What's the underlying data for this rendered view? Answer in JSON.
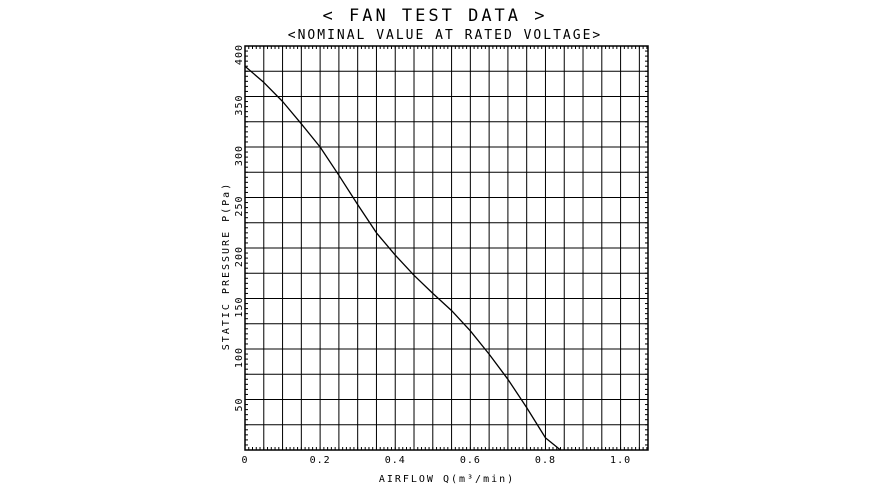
{
  "chart_data": {
    "type": "line",
    "title": "< FAN TEST DATA >",
    "subtitle": "<NOMINAL VALUE AT RATED VOLTAGE>",
    "xlabel": "AIRFLOW Q(m³/min)",
    "ylabel": "STATIC PRESSURE P(Pa)",
    "xlim": [
      0,
      1.073
    ],
    "ylim": [
      0,
      400
    ],
    "x_ticks": [
      0,
      0.2,
      0.4,
      0.6,
      0.8,
      1.0
    ],
    "x_tick_labels": [
      "0",
      "0.2",
      "0.4",
      "0.6",
      "0.8",
      "1.0"
    ],
    "y_ticks": [
      50,
      100,
      150,
      200,
      250,
      300,
      350,
      400
    ],
    "y_tick_labels": [
      "50",
      "100",
      "150",
      "200",
      "250",
      "300",
      "350",
      "400"
    ],
    "grid": true,
    "series": [
      {
        "x": [
          0,
          0.05,
          0.1,
          0.15,
          0.2,
          0.25,
          0.3,
          0.35,
          0.4,
          0.45,
          0.5,
          0.55,
          0.6,
          0.65,
          0.7,
          0.75,
          0.8,
          0.84
        ],
        "y": [
          380,
          364,
          345,
          323,
          300,
          272,
          243,
          215,
          193,
          173,
          155,
          138,
          118,
          95,
          70,
          42,
          12,
          0
        ]
      }
    ]
  }
}
